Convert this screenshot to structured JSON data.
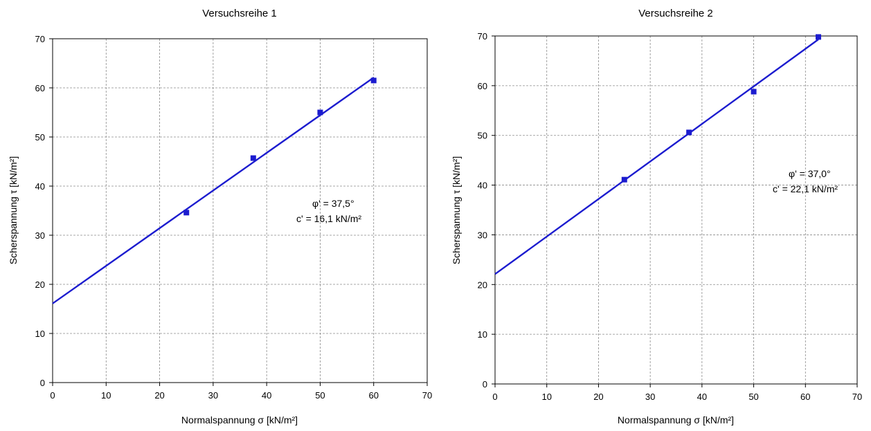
{
  "chart_data": [
    {
      "type": "scatter",
      "title": "Versuchsreihe 1",
      "xlabel": "Normalspannung σ [kN/m²]",
      "ylabel": "Scherspannung τ [kN/m²]",
      "xlim": [
        0,
        70
      ],
      "ylim": [
        0,
        70
      ],
      "xticks": [
        "0",
        "10",
        "20",
        "30",
        "40",
        "50",
        "60",
        "70"
      ],
      "yticks": [
        "0",
        "10",
        "20",
        "30",
        "40",
        "50",
        "60",
        "70"
      ],
      "grid": true,
      "points": [
        {
          "x": 25,
          "y": 34.6
        },
        {
          "x": 37.5,
          "y": 45.7
        },
        {
          "x": 50,
          "y": 55.0
        },
        {
          "x": 60,
          "y": 61.5
        }
      ],
      "fit_line": {
        "x": [
          0,
          60
        ],
        "y": [
          16.1,
          62.1
        ]
      },
      "annotation": [
        "φ' = 37,5°",
        "c' = 16,1 kN/m²"
      ]
    },
    {
      "type": "scatter",
      "title": "Versuchsreihe 2",
      "xlabel": "Normalspannung σ [kN/m²]",
      "ylabel": "Scherspannung τ [kN/m²]",
      "xlim": [
        0,
        70
      ],
      "ylim": [
        0,
        70
      ],
      "xticks": [
        "0",
        "10",
        "20",
        "30",
        "40",
        "50",
        "60",
        "70"
      ],
      "yticks": [
        "0",
        "10",
        "20",
        "30",
        "40",
        "50",
        "60",
        "70"
      ],
      "grid": true,
      "points": [
        {
          "x": 25,
          "y": 41.1
        },
        {
          "x": 37.5,
          "y": 50.6
        },
        {
          "x": 50,
          "y": 58.8
        },
        {
          "x": 62.5,
          "y": 69.8
        }
      ],
      "fit_line": {
        "x": [
          0,
          62.5
        ],
        "y": [
          22.1,
          69.3
        ]
      },
      "annotation": [
        "φ' = 37,0°",
        "c' = 22,1 kN/m²"
      ]
    }
  ]
}
